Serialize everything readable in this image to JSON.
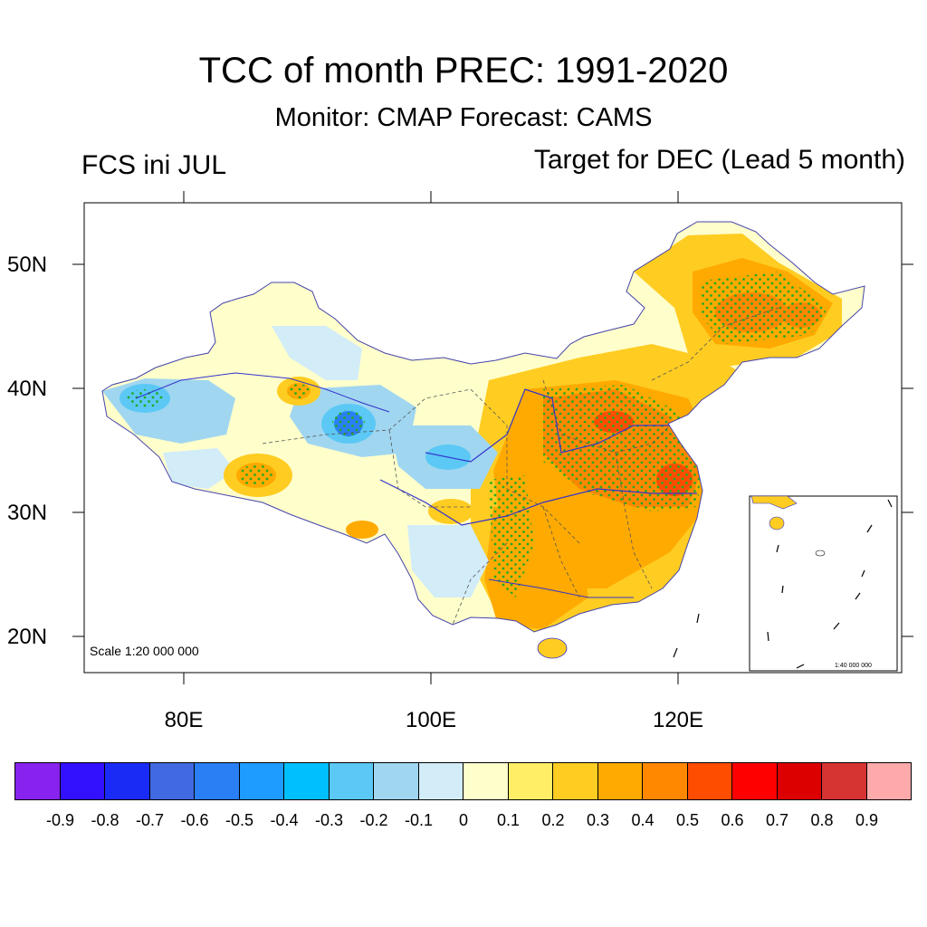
{
  "title": "TCC of month PREC: 1991-2020",
  "subtitle": "Monitor: CMAP   Forecast: CAMS",
  "left_label": "FCS ini JUL",
  "right_label": "Target for DEC (Lead 5 month)",
  "scale_main": "Scale 1:20 000 000",
  "scale_inset": "1:40 000 000",
  "lat_labels": [
    "50N",
    "40N",
    "30N",
    "20N"
  ],
  "lon_labels": [
    "80E",
    "100E",
    "120E"
  ],
  "colorbar": {
    "colors": [
      "#8822ee",
      "#3311ff",
      "#1a2bf5",
      "#4169e1",
      "#2a7ff5",
      "#1e9cff",
      "#00bfff",
      "#5cc8f5",
      "#a0d6f0",
      "#d2ecf8",
      "#ffffcc",
      "#ffee66",
      "#ffcc22",
      "#ffaa00",
      "#ff8800",
      "#ff4d00",
      "#ff0000",
      "#dd0000",
      "#d63333",
      "#ffaaaa"
    ],
    "ticks": [
      "-0.9",
      "-0.8",
      "-0.7",
      "-0.6",
      "-0.5",
      "-0.4",
      "-0.3",
      "-0.2",
      "-0.1",
      "0",
      "0.1",
      "0.2",
      "0.3",
      "0.4",
      "0.5",
      "0.6",
      "0.7",
      "0.8",
      "0.9"
    ]
  }
}
